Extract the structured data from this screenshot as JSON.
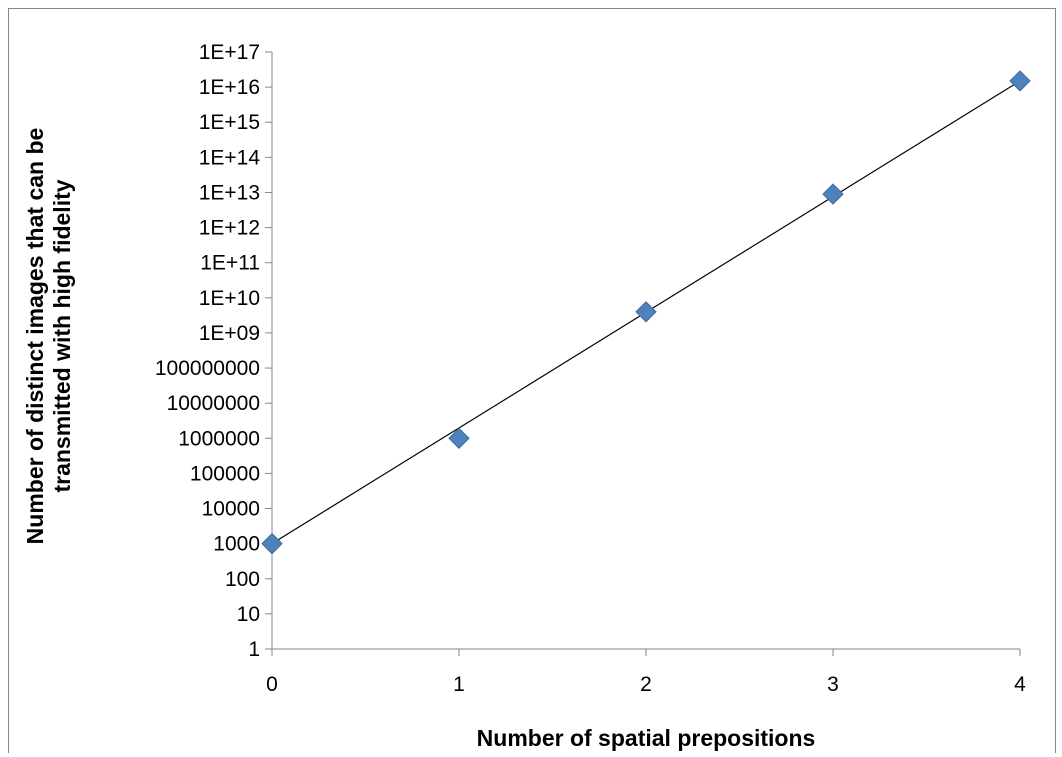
{
  "chart_data": {
    "type": "scatter",
    "title": "",
    "xlabel": "Number of spatial prepositions",
    "ylabel_lines": [
      "Number of distinct images that can be",
      "transmitted with high fidelity"
    ],
    "xlim": [
      0,
      4
    ],
    "ylim": [
      1,
      1e+17
    ],
    "y_scale": "log",
    "grid": false,
    "legend": "none",
    "x_ticks": [
      "0",
      "1",
      "2",
      "3",
      "4"
    ],
    "y_ticks": [
      "1",
      "10",
      "100",
      "1000",
      "10000",
      "100000",
      "1000000",
      "10000000",
      "100000000",
      "1E+09",
      "1E+10",
      "1E+11",
      "1E+12",
      "1E+13",
      "1E+14",
      "1E+15",
      "1E+16",
      "1E+17"
    ],
    "series": [
      {
        "x": [
          0,
          1,
          2,
          3,
          4
        ],
        "y": [
          1000,
          1000000,
          4000000000,
          9000000000000,
          15000000000000000
        ]
      }
    ],
    "trendline": {
      "type": "exponential",
      "x": [
        0,
        4
      ],
      "y": [
        1000,
        15000000000000000
      ]
    },
    "marker_color": "#4F81BD",
    "line_color": "#000000"
  }
}
